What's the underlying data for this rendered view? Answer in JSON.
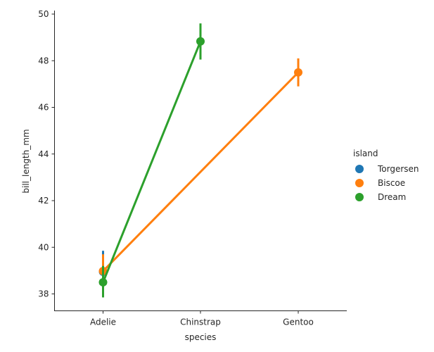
{
  "chart_data": {
    "type": "line",
    "xlabel": "species",
    "ylabel": "bill_length_mm",
    "categories": [
      "Adelie",
      "Chinstrap",
      "Gentoo"
    ],
    "ylim": [
      37.3,
      50.1
    ],
    "yticks": [
      38,
      40,
      42,
      44,
      46,
      48,
      50
    ],
    "grid": false,
    "legend": {
      "title": "island",
      "placement": "right"
    },
    "series": [
      {
        "name": "Torgersen",
        "color": "#1f77b4",
        "points": [
          {
            "category": "Adelie",
            "value": 38.95,
            "ci": [
              38.1,
              39.85
            ]
          }
        ]
      },
      {
        "name": "Biscoe",
        "color": "#ff7f0e",
        "points": [
          {
            "category": "Adelie",
            "value": 38.98,
            "ci": [
              38.25,
              39.7
            ]
          },
          {
            "category": "Gentoo",
            "value": 47.5,
            "ci": [
              46.9,
              48.1
            ]
          }
        ]
      },
      {
        "name": "Dream",
        "color": "#2ca02c",
        "points": [
          {
            "category": "Adelie",
            "value": 38.5,
            "ci": [
              37.85,
              39.2
            ]
          },
          {
            "category": "Chinstrap",
            "value": 48.83,
            "ci": [
              48.05,
              49.6
            ]
          }
        ]
      }
    ]
  }
}
